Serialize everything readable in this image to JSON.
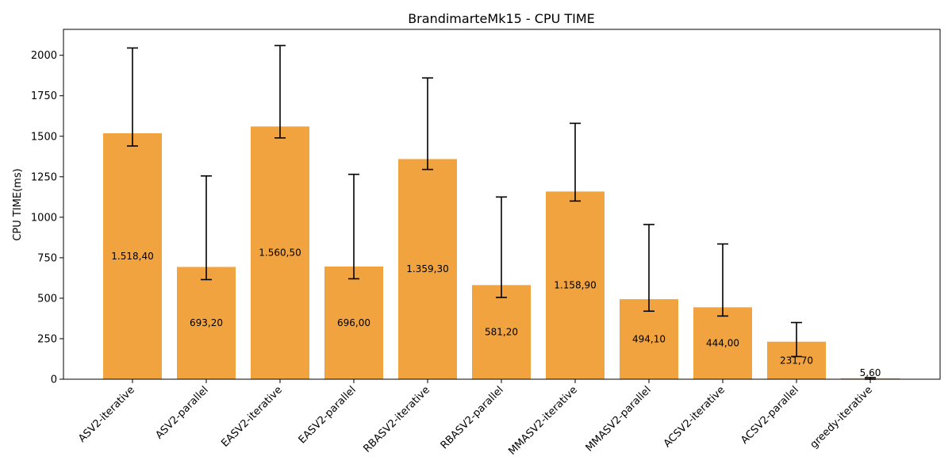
{
  "chart_data": {
    "type": "bar",
    "title": "BrandimarteMk15 - CPU TIME",
    "xlabel": "",
    "ylabel": "CPU TIME(ms)",
    "ylim": [
      0,
      2160
    ],
    "yticks": [
      0,
      250,
      500,
      750,
      1000,
      1250,
      1500,
      1750,
      2000
    ],
    "ytick_labels": [
      "0",
      "250",
      "500",
      "750",
      "1000",
      "1250",
      "1500",
      "1750",
      "2000"
    ],
    "categories": [
      "ASV2-iterative",
      "ASV2-parallel",
      "EASV2-iterative",
      "EASV2-parallel",
      "RBASV2-iterative",
      "RBASV2-parallel",
      "MMASV2-iterative",
      "MMASV2-parallel",
      "ACSV2-iterative",
      "ACSV2-parallel",
      "greedy-iterative"
    ],
    "values": [
      1518.4,
      693.2,
      1560.5,
      696.0,
      1359.3,
      581.2,
      1158.9,
      494.1,
      444.0,
      231.7,
      5.6
    ],
    "value_labels": [
      "1.518,40",
      "693,20",
      "1.560,50",
      "696,00",
      "1.359,30",
      "581,20",
      "1.158,90",
      "494,10",
      "444,00",
      "231,70",
      "5,60"
    ],
    "error_low": [
      1440,
      615,
      1490,
      620,
      1295,
      505,
      1100,
      420,
      390,
      140,
      0
    ],
    "error_high": [
      2045,
      1255,
      2060,
      1265,
      1860,
      1125,
      1580,
      955,
      835,
      350,
      10
    ],
    "grid": false,
    "bar_color": "#f0a33f"
  }
}
